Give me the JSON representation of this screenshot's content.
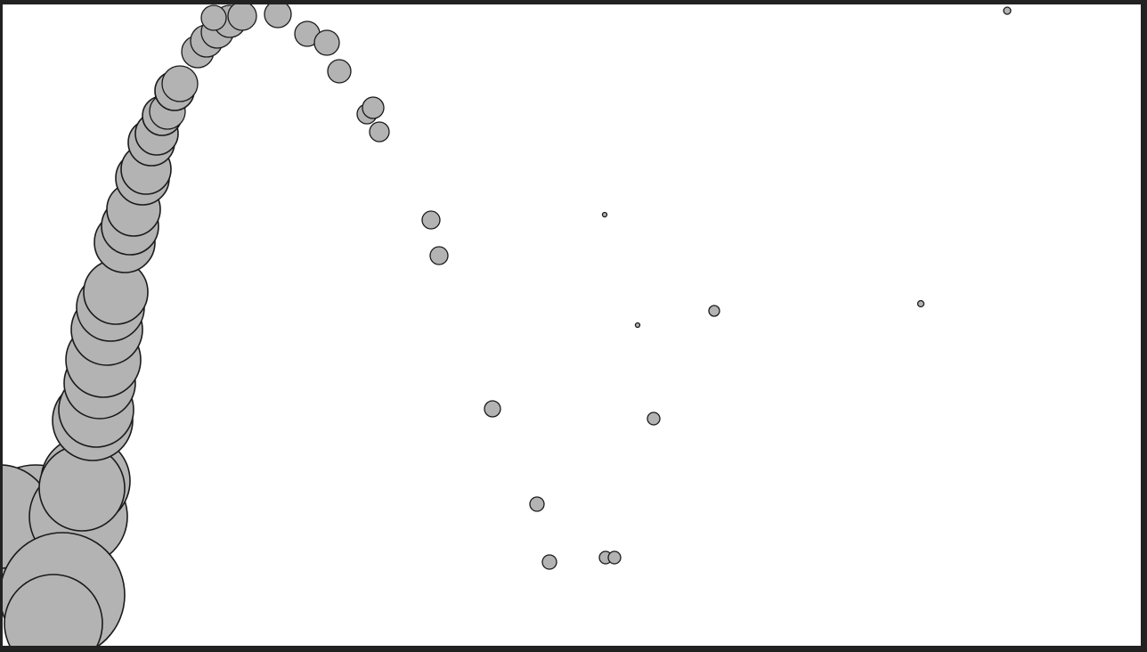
{
  "canvas": {
    "frame_color": "#222222",
    "background_color": "#ffffff",
    "circle_fill": "#b3b3b3",
    "circle_stroke": "#1a1a1a",
    "circle_count": 88
  }
}
